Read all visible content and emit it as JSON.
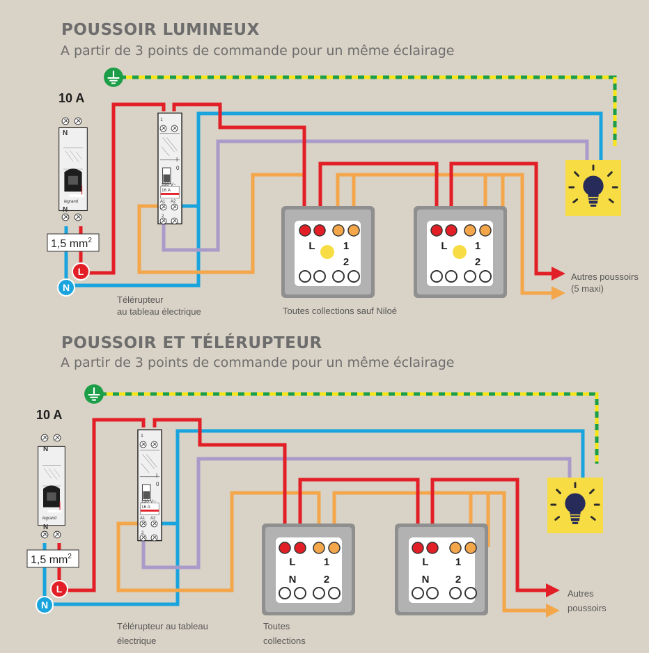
{
  "sections": [
    {
      "title": "POUSSOIR LUMINEUX",
      "subtitle": "A partir de 3 points de commande pour un même éclairage",
      "breaker_rating": "10 A",
      "cable_section": "1,5 mm",
      "cable_section_sup": "2",
      "terminal_L": "L",
      "terminal_N": "N",
      "contactor_label": "Télérupteur\nau tableau électrique",
      "switch_caption": "Toutes collections sauf Niloé",
      "switch_terminals": {
        "L": "L",
        "t1": "1",
        "t2": "2"
      },
      "others_label": "Autres poussoirs\n(5 maxi)"
    },
    {
      "title": "POUSSOIR ET TÉLÉRUPTEUR",
      "subtitle": "A partir de 3 points de commande pour un même éclairage",
      "breaker_rating": "10 A",
      "cable_section": "1,5 mm",
      "cable_section_sup": "2",
      "terminal_L": "L",
      "terminal_N": "N",
      "contactor_label": "Télérupteur au tableau\nélectrique",
      "switch_caption": "Toutes\ncollections",
      "switch_terminals": {
        "L": "L",
        "N": "N",
        "t1": "1",
        "t2": "2"
      },
      "others_label": "Autres\npoussoirs"
    }
  ],
  "device_text": {
    "breaker_N": "N",
    "contactor_1": "1",
    "contactor_2": "2",
    "contactor_I": "I",
    "contactor_0": "0",
    "contactor_voltage": "230 V~",
    "contactor_current": "16 A",
    "contactor_A1": "A1",
    "contactor_A2": "A2",
    "brand": "legrand"
  },
  "icons": [
    "ground-icon",
    "lamp-icon",
    "arrow-icon"
  ],
  "colors": {
    "background": "#d9d2c6",
    "live_red": "#e21f26",
    "neutral_blue": "#1aa4dd",
    "purple": "#a99bc9",
    "orange": "#f4a64a",
    "earth_green": "#1c9e48",
    "earth_yellow": "#f6e51b",
    "lamp_yellow": "#f7dd43",
    "title_grey": "#6d6d6d"
  }
}
